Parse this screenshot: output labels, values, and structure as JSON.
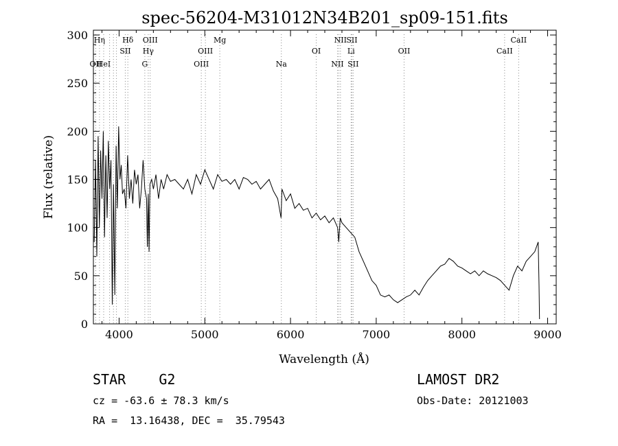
{
  "chart_data": {
    "type": "line",
    "title": "spec-56204-M31012N34B201_sp09-151.fits",
    "xlabel": "Wavelength (Å)",
    "ylabel": "Flux (relative)",
    "xlim": [
      3700,
      9100
    ],
    "ylim": [
      0,
      305
    ],
    "xticks": [
      4000,
      5000,
      6000,
      7000,
      8000,
      9000
    ],
    "yticks": [
      0,
      50,
      100,
      150,
      200,
      250,
      300
    ],
    "grid": false,
    "line_color": "#000000",
    "marker_color": "#888888",
    "series": [
      {
        "x": [
          3710,
          3725,
          3740,
          3755,
          3770,
          3785,
          3800,
          3815,
          3830,
          3845,
          3860,
          3875,
          3890,
          3905,
          3920,
          3935,
          3950,
          3965,
          3980,
          3995,
          4010,
          4025,
          4040,
          4060,
          4080,
          4100,
          4120,
          4140,
          4160,
          4180,
          4200,
          4220,
          4240,
          4260,
          4280,
          4300,
          4320,
          4330,
          4340,
          4350,
          4360,
          4380,
          4400,
          4430,
          4460,
          4490,
          4520,
          4560,
          4600,
          4650,
          4700,
          4750,
          4800,
          4850,
          4900,
          4950,
          5000,
          5050,
          5100,
          5150,
          5200,
          5250,
          5300,
          5350,
          5400,
          5450,
          5500,
          5550,
          5600,
          5650,
          5700,
          5750,
          5800,
          5850,
          5890,
          5900,
          5950,
          6000,
          6050,
          6100,
          6150,
          6200,
          6250,
          6300,
          6350,
          6400,
          6450,
          6500,
          6550,
          6563,
          6580,
          6600,
          6650,
          6700,
          6750,
          6800,
          6850,
          6900,
          6950,
          7000,
          7050,
          7100,
          7150,
          7200,
          7250,
          7300,
          7350,
          7400,
          7450,
          7500,
          7550,
          7600,
          7650,
          7700,
          7750,
          7800,
          7850,
          7900,
          7950,
          8000,
          8050,
          8100,
          8150,
          8200,
          8250,
          8300,
          8350,
          8400,
          8450,
          8500,
          8550,
          8600,
          8650,
          8700,
          8750,
          8800,
          8850,
          8870,
          8890,
          8900,
          8905
        ],
        "y": [
          85,
          170,
          70,
          195,
          100,
          180,
          130,
          200,
          90,
          175,
          110,
          190,
          140,
          170,
          20,
          145,
          30,
          185,
          120,
          205,
          150,
          165,
          135,
          140,
          120,
          175,
          130,
          150,
          125,
          160,
          145,
          155,
          120,
          140,
          170,
          140,
          130,
          80,
          135,
          75,
          145,
          150,
          140,
          155,
          130,
          150,
          140,
          155,
          148,
          150,
          145,
          140,
          150,
          135,
          155,
          145,
          160,
          150,
          140,
          155,
          148,
          150,
          145,
          150,
          140,
          152,
          150,
          145,
          148,
          140,
          145,
          150,
          138,
          130,
          110,
          140,
          128,
          135,
          120,
          125,
          118,
          120,
          110,
          115,
          108,
          112,
          105,
          110,
          100,
          85,
          110,
          105,
          100,
          95,
          90,
          75,
          65,
          55,
          45,
          40,
          30,
          28,
          30,
          25,
          22,
          25,
          28,
          30,
          35,
          30,
          38,
          45,
          50,
          55,
          60,
          62,
          68,
          65,
          60,
          58,
          55,
          52,
          55,
          50,
          55,
          52,
          50,
          48,
          45,
          40,
          35,
          50,
          60,
          55,
          65,
          70,
          75,
          80,
          85,
          40,
          5
        ]
      }
    ],
    "lines": [
      {
        "x": 3727,
        "label": "OII",
        "row": 3
      },
      {
        "x": 3771,
        "label": "Hη",
        "row": 1
      },
      {
        "x": 3820,
        "label": "HeI",
        "row": 3
      },
      {
        "x": 3889,
        "label": "",
        "row": 0
      },
      {
        "x": 3934,
        "label": "",
        "row": 0
      },
      {
        "x": 3969,
        "label": "",
        "row": 0
      },
      {
        "x": 4072,
        "label": "SII",
        "row": 2
      },
      {
        "x": 4102,
        "label": "Hδ",
        "row": 1
      },
      {
        "x": 4300,
        "label": "G",
        "row": 3
      },
      {
        "x": 4340,
        "label": "Hγ",
        "row": 2
      },
      {
        "x": 4363,
        "label": "OIII",
        "row": 1
      },
      {
        "x": 4959,
        "label": "OIII",
        "row": 3
      },
      {
        "x": 5007,
        "label": "OIII",
        "row": 2
      },
      {
        "x": 5175,
        "label": "Mg",
        "row": 1
      },
      {
        "x": 5893,
        "label": "Na",
        "row": 3
      },
      {
        "x": 6300,
        "label": "OI",
        "row": 2
      },
      {
        "x": 6548,
        "label": "NII",
        "row": 3
      },
      {
        "x": 6563,
        "label": "",
        "row": 0
      },
      {
        "x": 6583,
        "label": "NII",
        "row": 1
      },
      {
        "x": 6707,
        "label": "Li",
        "row": 2
      },
      {
        "x": 6716,
        "label": "SII",
        "row": 1
      },
      {
        "x": 6731,
        "label": "SII",
        "row": 3
      },
      {
        "x": 7325,
        "label": "OII",
        "row": 2
      },
      {
        "x": 8498,
        "label": "CaII",
        "row": 2
      },
      {
        "x": 8662,
        "label": "CaII",
        "row": 1
      }
    ]
  },
  "info": {
    "class": "STAR    G2",
    "survey": "LAMOST DR2",
    "cz": "cz = -63.6 ± 78.3 km/s",
    "obs_date": "Obs-Date: 20121003",
    "radec": "RA =  13.16438, DEC =  35.79543"
  }
}
